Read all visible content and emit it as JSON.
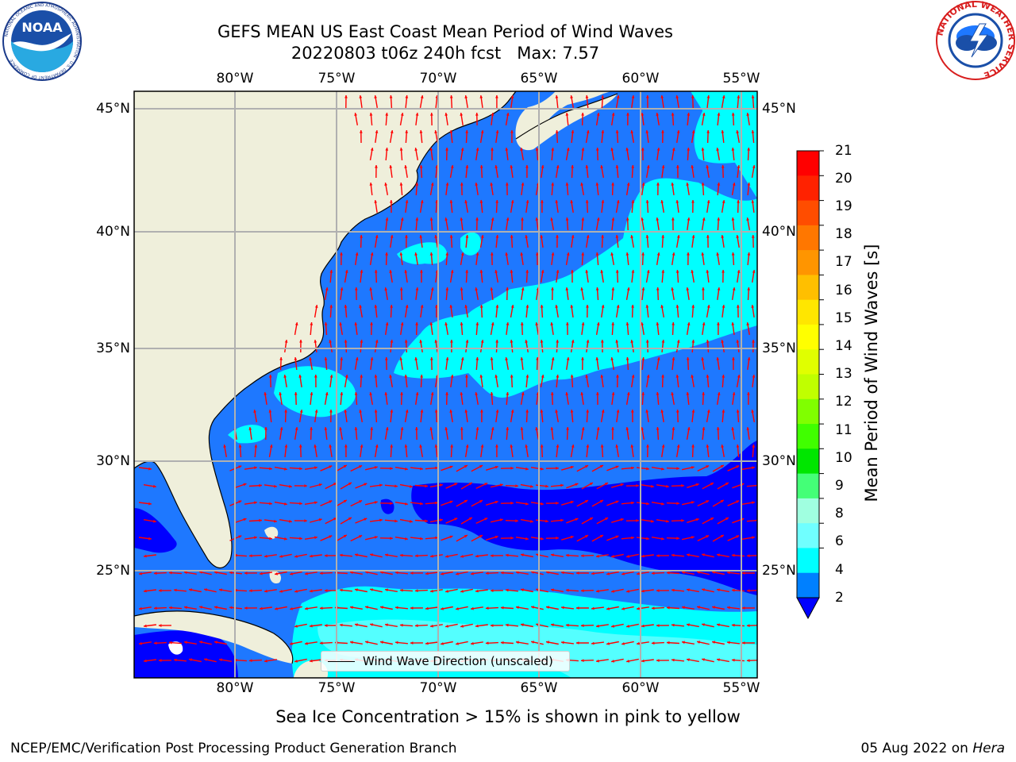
{
  "title": {
    "line1": "GEFS MEAN US East Coast Mean Period of Wind Waves",
    "line2": "20220803 t06z 240h fcst",
    "max": "Max: 7.57"
  },
  "logos": {
    "left": "NOAA",
    "left_ring": "NATIONAL OCEANIC AND ATMOSPHERIC ADMINISTRATION · U.S. DEPARTMENT OF COMMERCE",
    "right_ring": "NATIONAL WEATHER SERVICE"
  },
  "axes": {
    "lon_labels": [
      "80°W",
      "75°W",
      "70°W",
      "65°W",
      "60°W",
      "55°W"
    ],
    "lat_labels": [
      "45°N",
      "40°N",
      "35°N",
      "30°N",
      "25°N"
    ]
  },
  "colorbar": {
    "label": "Mean Period of Wind Waves [s]",
    "ticks": [
      "21",
      "20",
      "19",
      "18",
      "17",
      "16",
      "15",
      "14",
      "13",
      "12",
      "11",
      "10",
      "9",
      "8",
      "6",
      "4",
      "2"
    ],
    "colors": [
      "#ff0000",
      "#ff2200",
      "#ff4d00",
      "#ff7700",
      "#ff9500",
      "#ffbf00",
      "#ffe600",
      "#ffff00",
      "#e0ff00",
      "#c0ff00",
      "#80ff00",
      "#40ff00",
      "#00e600",
      "#44ff77",
      "#a0ffe0",
      "#70ffff",
      "#00ffff",
      "#0080ff"
    ],
    "under_color": "#0000ff"
  },
  "legend": {
    "label": "Wind Wave Direction (unscaled)"
  },
  "footnote": "Sea Ice Concentration > 15% is shown in pink to yellow",
  "credit": "NCEP/EMC/Verification Post Processing Product Generation Branch",
  "date": "05 Aug 2022 on",
  "machine": "Hera",
  "colors": {
    "land": "#efefdb",
    "band_2_4": "#1e78ff",
    "band_4_6": "#00ffff",
    "band_6_8": "#54ffff",
    "below_2": "#0000ff",
    "arrow": "#ff0000",
    "grid": "#b0b0b0"
  }
}
